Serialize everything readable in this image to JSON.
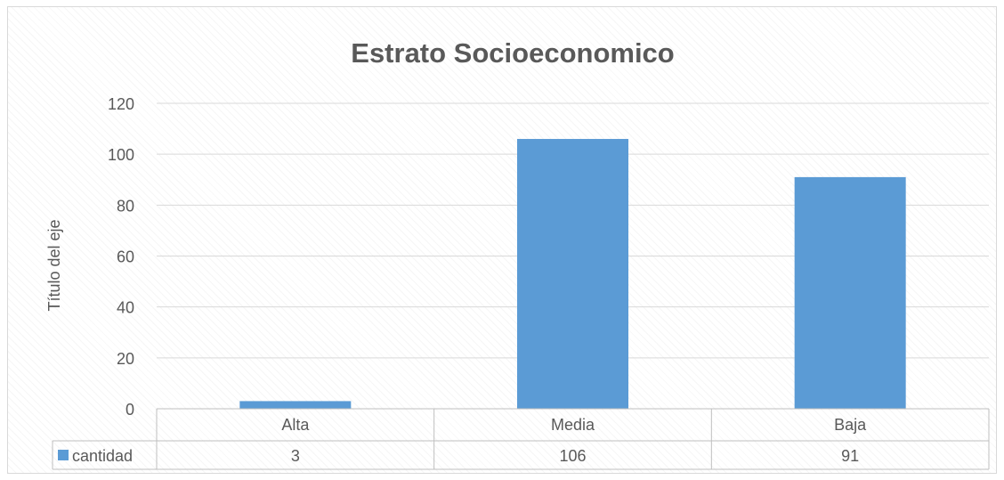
{
  "chart_data": {
    "type": "bar",
    "title": "Estrato Socioeconomico",
    "ylabel": "Título del eje",
    "xlabel": "",
    "categories": [
      "Alta",
      "Media",
      "Baja"
    ],
    "series": [
      {
        "name": "cantidad",
        "values": [
          3,
          106,
          91
        ],
        "color": "#5b9bd5"
      }
    ],
    "ylim": [
      0,
      120
    ],
    "yticks": [
      0,
      20,
      40,
      60,
      80,
      100,
      120
    ],
    "grid": true,
    "legend": "data-table-left",
    "data_table": true
  },
  "colors": {
    "bar": "#5b9bd5",
    "gridline": "#d9d9d9",
    "text": "#595959",
    "table_border": "#bfbfbf"
  }
}
